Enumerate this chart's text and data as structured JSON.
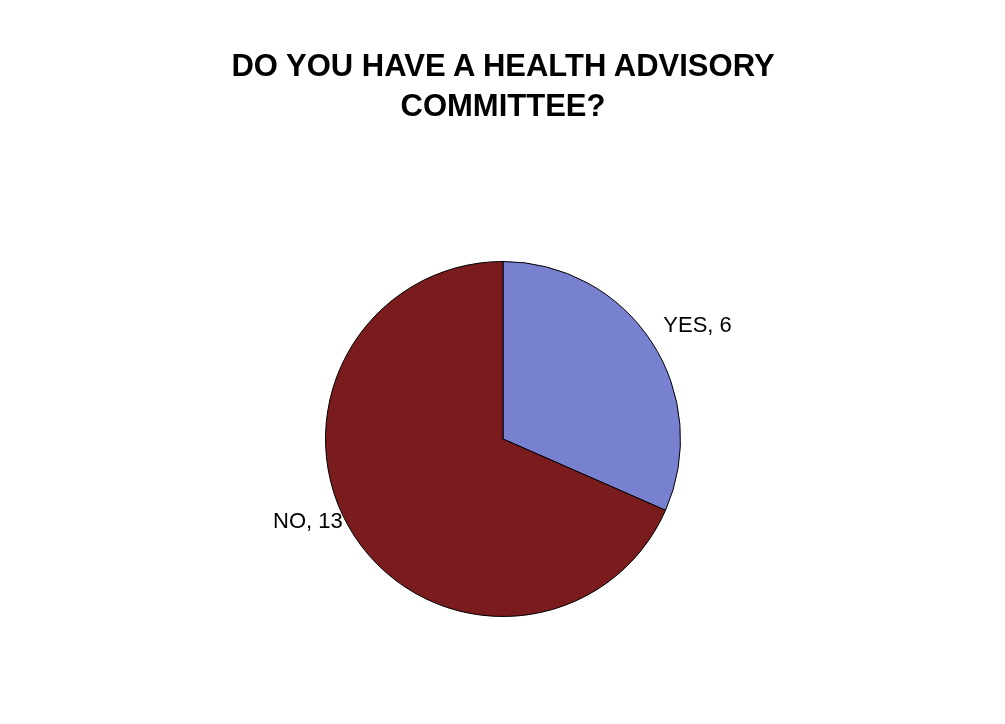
{
  "chart_data": {
    "type": "pie",
    "title": "DO YOU HAVE A HEALTH ADVISORY COMMITTEE?",
    "categories": [
      "YES",
      "NO"
    ],
    "values": [
      6,
      13
    ],
    "colors": [
      "#7880d0",
      "#7a1c1e"
    ],
    "value_labels": [
      ", 6",
      ", 13"
    ],
    "legend": false
  }
}
